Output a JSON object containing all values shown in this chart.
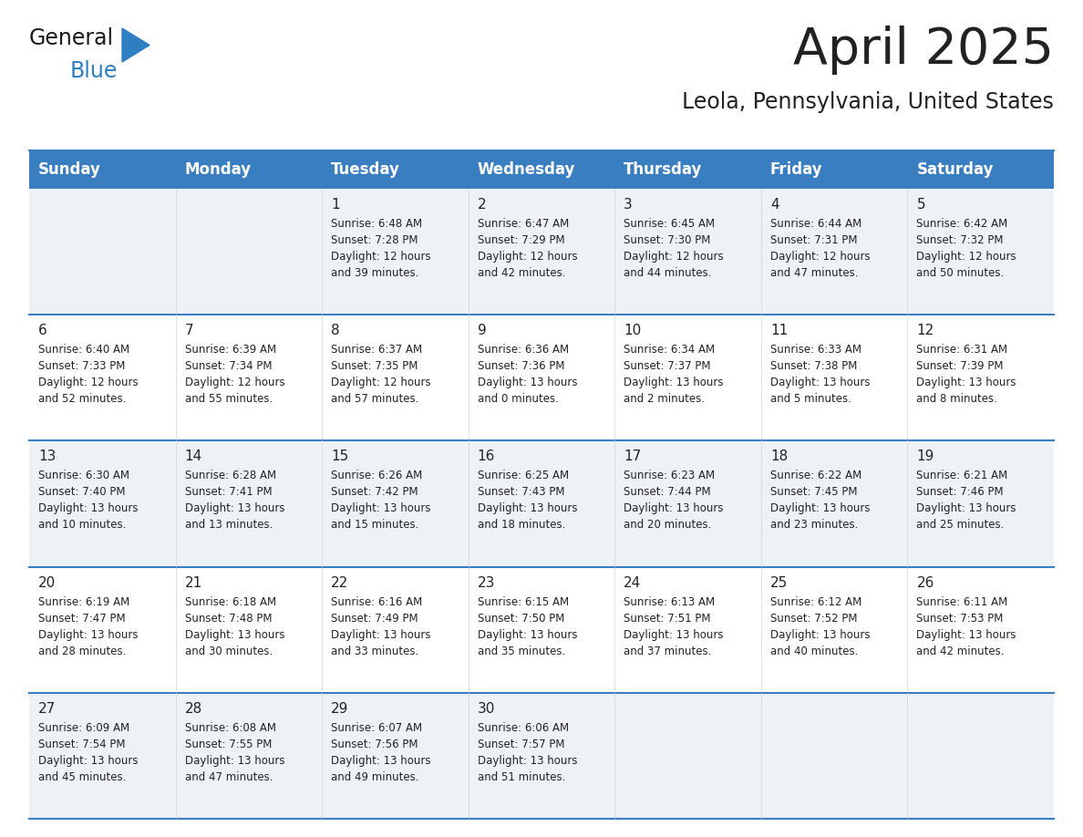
{
  "title": "April 2025",
  "subtitle": "Leola, Pennsylvania, United States",
  "header_color": "#3a7ec2",
  "header_text_color": "#ffffff",
  "bg_color": "#ffffff",
  "row_colors": [
    "#eef2f7",
    "#ffffff"
  ],
  "border_color": "#3a7ec2",
  "text_color": "#222222",
  "day_headers": [
    "Sunday",
    "Monday",
    "Tuesday",
    "Wednesday",
    "Thursday",
    "Friday",
    "Saturday"
  ],
  "weeks": [
    [
      {
        "day": "",
        "sunrise": "",
        "sunset": "",
        "daylight": ""
      },
      {
        "day": "",
        "sunrise": "",
        "sunset": "",
        "daylight": ""
      },
      {
        "day": "1",
        "sunrise": "Sunrise: 6:48 AM",
        "sunset": "Sunset: 7:28 PM",
        "daylight": "Daylight: 12 hours\nand 39 minutes."
      },
      {
        "day": "2",
        "sunrise": "Sunrise: 6:47 AM",
        "sunset": "Sunset: 7:29 PM",
        "daylight": "Daylight: 12 hours\nand 42 minutes."
      },
      {
        "day": "3",
        "sunrise": "Sunrise: 6:45 AM",
        "sunset": "Sunset: 7:30 PM",
        "daylight": "Daylight: 12 hours\nand 44 minutes."
      },
      {
        "day": "4",
        "sunrise": "Sunrise: 6:44 AM",
        "sunset": "Sunset: 7:31 PM",
        "daylight": "Daylight: 12 hours\nand 47 minutes."
      },
      {
        "day": "5",
        "sunrise": "Sunrise: 6:42 AM",
        "sunset": "Sunset: 7:32 PM",
        "daylight": "Daylight: 12 hours\nand 50 minutes."
      }
    ],
    [
      {
        "day": "6",
        "sunrise": "Sunrise: 6:40 AM",
        "sunset": "Sunset: 7:33 PM",
        "daylight": "Daylight: 12 hours\nand 52 minutes."
      },
      {
        "day": "7",
        "sunrise": "Sunrise: 6:39 AM",
        "sunset": "Sunset: 7:34 PM",
        "daylight": "Daylight: 12 hours\nand 55 minutes."
      },
      {
        "day": "8",
        "sunrise": "Sunrise: 6:37 AM",
        "sunset": "Sunset: 7:35 PM",
        "daylight": "Daylight: 12 hours\nand 57 minutes."
      },
      {
        "day": "9",
        "sunrise": "Sunrise: 6:36 AM",
        "sunset": "Sunset: 7:36 PM",
        "daylight": "Daylight: 13 hours\nand 0 minutes."
      },
      {
        "day": "10",
        "sunrise": "Sunrise: 6:34 AM",
        "sunset": "Sunset: 7:37 PM",
        "daylight": "Daylight: 13 hours\nand 2 minutes."
      },
      {
        "day": "11",
        "sunrise": "Sunrise: 6:33 AM",
        "sunset": "Sunset: 7:38 PM",
        "daylight": "Daylight: 13 hours\nand 5 minutes."
      },
      {
        "day": "12",
        "sunrise": "Sunrise: 6:31 AM",
        "sunset": "Sunset: 7:39 PM",
        "daylight": "Daylight: 13 hours\nand 8 minutes."
      }
    ],
    [
      {
        "day": "13",
        "sunrise": "Sunrise: 6:30 AM",
        "sunset": "Sunset: 7:40 PM",
        "daylight": "Daylight: 13 hours\nand 10 minutes."
      },
      {
        "day": "14",
        "sunrise": "Sunrise: 6:28 AM",
        "sunset": "Sunset: 7:41 PM",
        "daylight": "Daylight: 13 hours\nand 13 minutes."
      },
      {
        "day": "15",
        "sunrise": "Sunrise: 6:26 AM",
        "sunset": "Sunset: 7:42 PM",
        "daylight": "Daylight: 13 hours\nand 15 minutes."
      },
      {
        "day": "16",
        "sunrise": "Sunrise: 6:25 AM",
        "sunset": "Sunset: 7:43 PM",
        "daylight": "Daylight: 13 hours\nand 18 minutes."
      },
      {
        "day": "17",
        "sunrise": "Sunrise: 6:23 AM",
        "sunset": "Sunset: 7:44 PM",
        "daylight": "Daylight: 13 hours\nand 20 minutes."
      },
      {
        "day": "18",
        "sunrise": "Sunrise: 6:22 AM",
        "sunset": "Sunset: 7:45 PM",
        "daylight": "Daylight: 13 hours\nand 23 minutes."
      },
      {
        "day": "19",
        "sunrise": "Sunrise: 6:21 AM",
        "sunset": "Sunset: 7:46 PM",
        "daylight": "Daylight: 13 hours\nand 25 minutes."
      }
    ],
    [
      {
        "day": "20",
        "sunrise": "Sunrise: 6:19 AM",
        "sunset": "Sunset: 7:47 PM",
        "daylight": "Daylight: 13 hours\nand 28 minutes."
      },
      {
        "day": "21",
        "sunrise": "Sunrise: 6:18 AM",
        "sunset": "Sunset: 7:48 PM",
        "daylight": "Daylight: 13 hours\nand 30 minutes."
      },
      {
        "day": "22",
        "sunrise": "Sunrise: 6:16 AM",
        "sunset": "Sunset: 7:49 PM",
        "daylight": "Daylight: 13 hours\nand 33 minutes."
      },
      {
        "day": "23",
        "sunrise": "Sunrise: 6:15 AM",
        "sunset": "Sunset: 7:50 PM",
        "daylight": "Daylight: 13 hours\nand 35 minutes."
      },
      {
        "day": "24",
        "sunrise": "Sunrise: 6:13 AM",
        "sunset": "Sunset: 7:51 PM",
        "daylight": "Daylight: 13 hours\nand 37 minutes."
      },
      {
        "day": "25",
        "sunrise": "Sunrise: 6:12 AM",
        "sunset": "Sunset: 7:52 PM",
        "daylight": "Daylight: 13 hours\nand 40 minutes."
      },
      {
        "day": "26",
        "sunrise": "Sunrise: 6:11 AM",
        "sunset": "Sunset: 7:53 PM",
        "daylight": "Daylight: 13 hours\nand 42 minutes."
      }
    ],
    [
      {
        "day": "27",
        "sunrise": "Sunrise: 6:09 AM",
        "sunset": "Sunset: 7:54 PM",
        "daylight": "Daylight: 13 hours\nand 45 minutes."
      },
      {
        "day": "28",
        "sunrise": "Sunrise: 6:08 AM",
        "sunset": "Sunset: 7:55 PM",
        "daylight": "Daylight: 13 hours\nand 47 minutes."
      },
      {
        "day": "29",
        "sunrise": "Sunrise: 6:07 AM",
        "sunset": "Sunset: 7:56 PM",
        "daylight": "Daylight: 13 hours\nand 49 minutes."
      },
      {
        "day": "30",
        "sunrise": "Sunrise: 6:06 AM",
        "sunset": "Sunset: 7:57 PM",
        "daylight": "Daylight: 13 hours\nand 51 minutes."
      },
      {
        "day": "",
        "sunrise": "",
        "sunset": "",
        "daylight": ""
      },
      {
        "day": "",
        "sunrise": "",
        "sunset": "",
        "daylight": ""
      },
      {
        "day": "",
        "sunrise": "",
        "sunset": "",
        "daylight": ""
      }
    ]
  ],
  "logo_general_color": "#1a1a1a",
  "logo_blue_color": "#2e7fc1",
  "logo_triangle_color": "#2e7fc1",
  "title_fontsize": 40,
  "subtitle_fontsize": 17,
  "header_fontsize": 12,
  "day_num_fontsize": 11,
  "cell_text_fontsize": 8.5
}
